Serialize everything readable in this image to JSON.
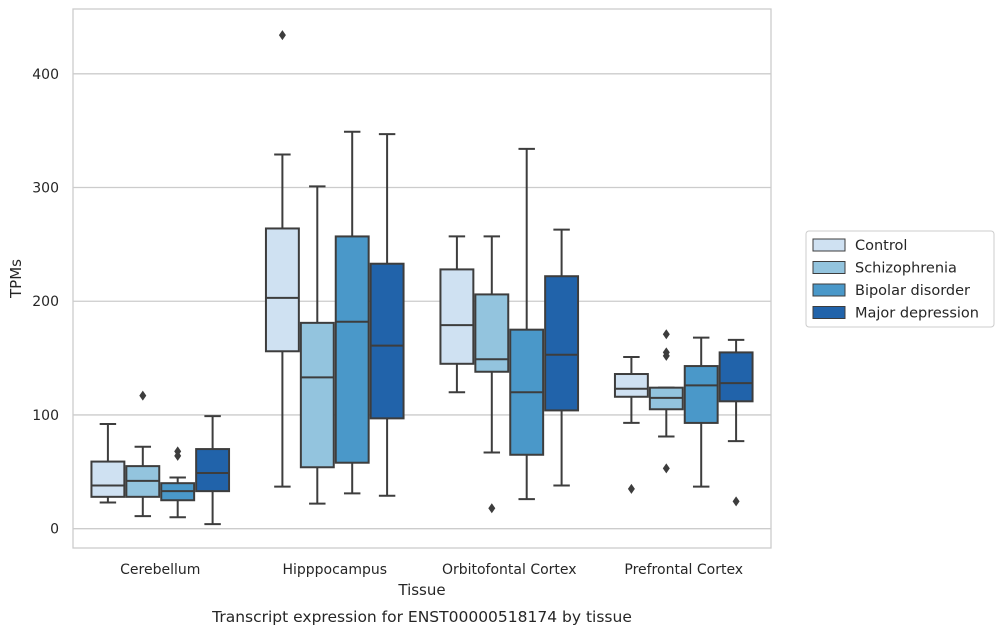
{
  "caption": "Transcript expression for ENST00000518174 by tissue",
  "chart_data": {
    "type": "boxplot",
    "title": "",
    "xlabel": "Tissue",
    "ylabel": "TPMs",
    "ylim": [
      -17,
      457
    ],
    "yticks": [
      0,
      100,
      200,
      300,
      400
    ],
    "grid": true,
    "legend_position": "right",
    "categories": [
      "Cerebellum",
      "Hipppocampus",
      "Orbitofontal Cortex",
      "Prefrontal Cortex"
    ],
    "series": [
      {
        "name": "Control",
        "color": "#cfe1f2",
        "boxes": [
          {
            "whisker_low": 23,
            "q1": 28,
            "median": 38,
            "q3": 59,
            "whisker_high": 92,
            "outliers": []
          },
          {
            "whisker_low": 37,
            "q1": 156,
            "median": 203,
            "q3": 264,
            "whisker_high": 329,
            "outliers": [
              434
            ]
          },
          {
            "whisker_low": 120,
            "q1": 145,
            "median": 179,
            "q3": 228,
            "whisker_high": 257,
            "outliers": []
          },
          {
            "whisker_low": 93,
            "q1": 116,
            "median": 123,
            "q3": 136,
            "whisker_high": 151,
            "outliers": [
              35
            ]
          }
        ]
      },
      {
        "name": "Schizophrenia",
        "color": "#93c4de",
        "boxes": [
          {
            "whisker_low": 11,
            "q1": 28,
            "median": 42,
            "q3": 55,
            "whisker_high": 72,
            "outliers": [
              117
            ]
          },
          {
            "whisker_low": 22,
            "q1": 54,
            "median": 133,
            "q3": 181,
            "whisker_high": 301,
            "outliers": []
          },
          {
            "whisker_low": 67,
            "q1": 138,
            "median": 149,
            "q3": 206,
            "whisker_high": 257,
            "outliers": [
              18
            ]
          },
          {
            "whisker_low": 81,
            "q1": 105,
            "median": 115,
            "q3": 124,
            "whisker_high": 124,
            "outliers": [
              171,
              155,
              152,
              53
            ]
          }
        ]
      },
      {
        "name": "Bipolar disorder",
        "color": "#4a98c9",
        "boxes": [
          {
            "whisker_low": 10,
            "q1": 25,
            "median": 33,
            "q3": 40,
            "whisker_high": 45,
            "outliers": [
              68,
              64
            ]
          },
          {
            "whisker_low": 31,
            "q1": 58,
            "median": 182,
            "q3": 257,
            "whisker_high": 349,
            "outliers": []
          },
          {
            "whisker_low": 26,
            "q1": 65,
            "median": 120,
            "q3": 175,
            "whisker_high": 334,
            "outliers": []
          },
          {
            "whisker_low": 37,
            "q1": 93,
            "median": 126,
            "q3": 143,
            "whisker_high": 168,
            "outliers": []
          }
        ]
      },
      {
        "name": "Major depression",
        "color": "#2163aa",
        "boxes": [
          {
            "whisker_low": 4,
            "q1": 33,
            "median": 49,
            "q3": 70,
            "whisker_high": 99,
            "outliers": []
          },
          {
            "whisker_low": 29,
            "q1": 97,
            "median": 161,
            "q3": 233,
            "whisker_high": 347,
            "outliers": []
          },
          {
            "whisker_low": 38,
            "q1": 104,
            "median": 153,
            "q3": 222,
            "whisker_high": 263,
            "outliers": []
          },
          {
            "whisker_low": 77,
            "q1": 112,
            "median": 128,
            "q3": 155,
            "whisker_high": 166,
            "outliers": [
              24
            ]
          }
        ]
      }
    ]
  }
}
